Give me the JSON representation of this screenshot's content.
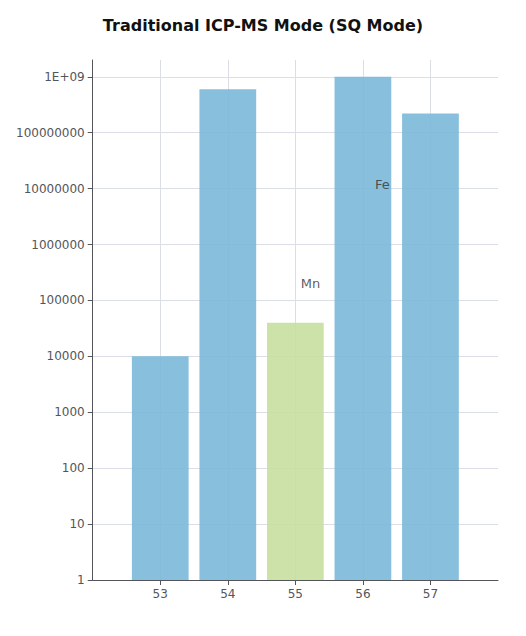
{
  "chart_data": {
    "type": "bar",
    "title": "Traditional ICP-MS Mode (SQ Mode)",
    "x": [
      53,
      54,
      55,
      56,
      57
    ],
    "values": [
      10000,
      600000000,
      40000,
      1000000000,
      220000000
    ],
    "colors": [
      "#7ab8d9",
      "#7ab8d9",
      "#c8dfa0",
      "#7ab8d9",
      "#7ab8d9"
    ],
    "log": "y",
    "xlim": [
      52.0,
      58.0
    ],
    "ylim": [
      1,
      2000000000
    ],
    "xticks": [
      53,
      54,
      55,
      56,
      57
    ],
    "yticks": [
      1,
      10,
      100,
      1000,
      10000,
      100000,
      1000000,
      10000000,
      100000000,
      {
        "value": 1000000000,
        "label": "1E+09"
      }
    ],
    "grid": true,
    "annotations": [
      {
        "text": "Mn",
        "x": 55.08,
        "y": 200000,
        "color": "#333333"
      },
      {
        "text": "Fe",
        "x": 56.18,
        "y": 12000000,
        "color": "#333333"
      }
    ]
  }
}
